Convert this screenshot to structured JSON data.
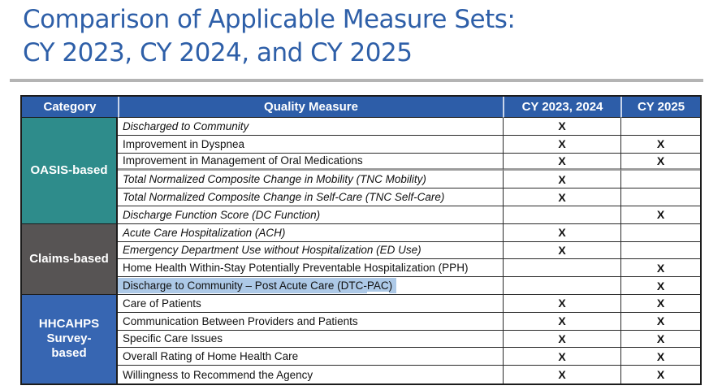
{
  "title": {
    "line1": "Comparison of Applicable Measure Sets:",
    "line2": "CY 2023, CY 2024, and CY 2025"
  },
  "colors": {
    "title_blue": "#2e5fa8",
    "header_blue": "#2d5da8",
    "oasis_teal": "#2e8c8b",
    "claims_gray": "#575454",
    "hhcahps_blue": "#3766b2",
    "selection_highlight": "#adc9e7",
    "divider_gray": "#b4b4b4",
    "x_mark_black": "#111111"
  },
  "table": {
    "headers": {
      "category": "Category",
      "measure": "Quality Measure",
      "cy2324": "CY 2023, 2024",
      "cy25": "CY 2025"
    },
    "categories": [
      {
        "label": "OASIS-based",
        "row_span": 6
      },
      {
        "label": "Claims-based",
        "row_span": 4
      },
      {
        "label": "HHCAHPS Survey-based",
        "row_span": 5
      }
    ],
    "rows": [
      {
        "measure": "Discharged to Community",
        "italic": true,
        "cy2324": "X",
        "cy25": ""
      },
      {
        "measure": "Improvement in Dyspnea",
        "italic": false,
        "cy2324": "X",
        "cy25": "X"
      },
      {
        "measure": "Improvement in Management of Oral Medications",
        "italic": false,
        "cy2324": "X",
        "cy25": "X"
      },
      {
        "measure": "Total Normalized Composite Change in Mobility (TNC Mobility)",
        "italic": true,
        "cy2324": "X",
        "cy25": ""
      },
      {
        "measure": "Total Normalized Composite Change in Self-Care (TNC Self-Care)",
        "italic": true,
        "cy2324": "X",
        "cy25": ""
      },
      {
        "measure": "Discharge Function Score (DC Function)",
        "italic": true,
        "cy2324": "",
        "cy25": "X"
      },
      {
        "measure": "Acute Care Hospitalization (ACH)",
        "italic": true,
        "cy2324": "X",
        "cy25": ""
      },
      {
        "measure": "Emergency Department Use without Hospitalization (ED Use)",
        "italic": true,
        "cy2324": "X",
        "cy25": ""
      },
      {
        "measure": "Home Health Within-Stay Potentially Preventable Hospitalization (PPH)",
        "italic": false,
        "cy2324": "",
        "cy25": "X"
      },
      {
        "measure": "Discharge to Community – Post Acute Care (DTC-PAC)",
        "italic": false,
        "highlighted": true,
        "parts": {
          "pre": "Discharge to Community – Post Acute Care (DTC-",
          "underlined": "PAC",
          "post": ")"
        },
        "cy2324": "",
        "cy25": "X"
      },
      {
        "measure": "Care of Patients",
        "italic": false,
        "cy2324": "X",
        "cy25": "X"
      },
      {
        "measure": "Communication Between Providers and Patients",
        "italic": false,
        "cy2324": "X",
        "cy25": "X"
      },
      {
        "measure": "Specific Care Issues",
        "italic": false,
        "cy2324": "X",
        "cy25": "X"
      },
      {
        "measure": "Overall Rating of Home Health Care",
        "italic": false,
        "cy2324": "X",
        "cy25": "X"
      },
      {
        "measure": "Willingness to Recommend the Agency",
        "italic": false,
        "cy2324": "X",
        "cy25": "X"
      }
    ]
  }
}
